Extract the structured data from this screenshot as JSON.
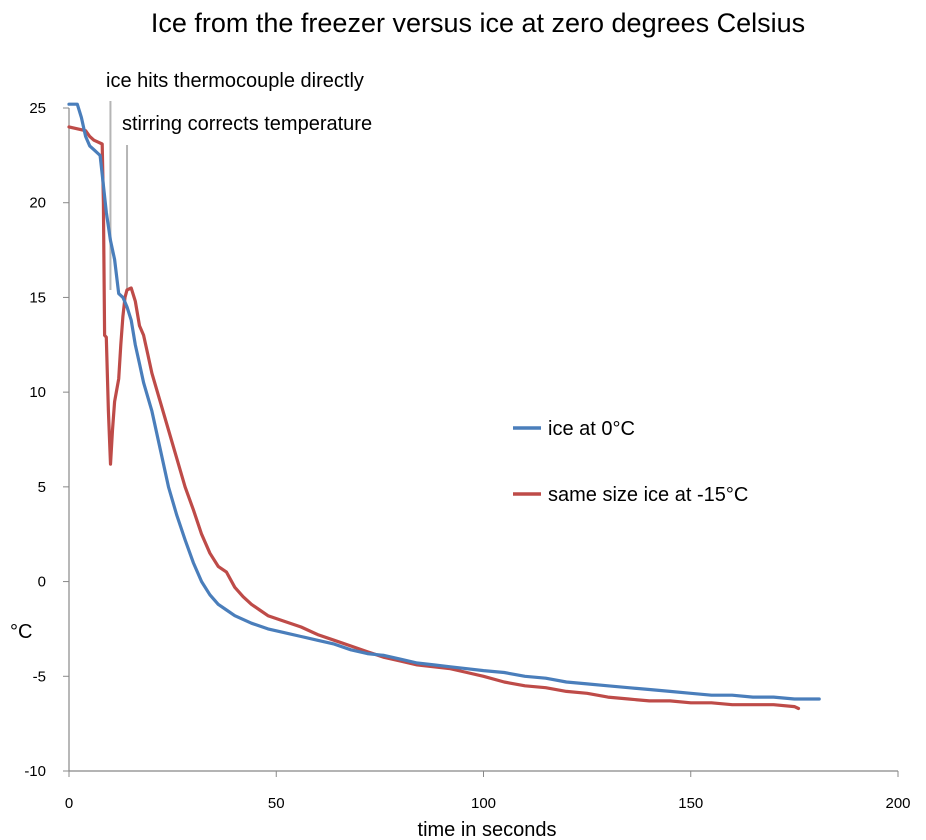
{
  "chart_data": {
    "type": "line",
    "title": "Ice from the freezer versus ice at zero degrees Celsius",
    "xlabel": "time in seconds",
    "ylabel": "°C",
    "xlim": [
      0,
      200
    ],
    "ylim": [
      -10,
      25
    ],
    "x_ticks": [
      "0",
      "50",
      "100",
      "150",
      "200"
    ],
    "y_ticks": [
      "-10",
      "-5",
      "0",
      "5",
      "10",
      "15",
      "20",
      "25"
    ],
    "grid": false,
    "legend_position": "right",
    "annotations": [
      {
        "text": "ice hits thermocouple directly",
        "x": 10
      },
      {
        "text": "stirring corrects temperature",
        "x": 14
      }
    ],
    "series": [
      {
        "name": "ice at 0°C",
        "color": "#4a7ebb",
        "points": [
          [
            0,
            25.2
          ],
          [
            2,
            25.2
          ],
          [
            3,
            24.5
          ],
          [
            4,
            23.5
          ],
          [
            5,
            23.0
          ],
          [
            6,
            22.8
          ],
          [
            7,
            22.6
          ],
          [
            7.5,
            22.5
          ],
          [
            8,
            21.5
          ],
          [
            9,
            19.5
          ],
          [
            10,
            18.0
          ],
          [
            11,
            17.0
          ],
          [
            12,
            15.2
          ],
          [
            13,
            15.0
          ],
          [
            14,
            14.5
          ],
          [
            15,
            13.8
          ],
          [
            16,
            12.5
          ],
          [
            17,
            11.5
          ],
          [
            18,
            10.5
          ],
          [
            20,
            9.0
          ],
          [
            22,
            7.0
          ],
          [
            24,
            5.0
          ],
          [
            26,
            3.5
          ],
          [
            28,
            2.2
          ],
          [
            30,
            1.0
          ],
          [
            32,
            0.0
          ],
          [
            34,
            -0.7
          ],
          [
            36,
            -1.2
          ],
          [
            38,
            -1.5
          ],
          [
            40,
            -1.8
          ],
          [
            44,
            -2.2
          ],
          [
            48,
            -2.5
          ],
          [
            52,
            -2.7
          ],
          [
            56,
            -2.9
          ],
          [
            60,
            -3.1
          ],
          [
            64,
            -3.3
          ],
          [
            68,
            -3.6
          ],
          [
            72,
            -3.8
          ],
          [
            76,
            -3.9
          ],
          [
            80,
            -4.1
          ],
          [
            84,
            -4.3
          ],
          [
            88,
            -4.4
          ],
          [
            92,
            -4.5
          ],
          [
            96,
            -4.6
          ],
          [
            100,
            -4.7
          ],
          [
            105,
            -4.8
          ],
          [
            110,
            -5.0
          ],
          [
            115,
            -5.1
          ],
          [
            120,
            -5.3
          ],
          [
            125,
            -5.4
          ],
          [
            130,
            -5.5
          ],
          [
            135,
            -5.6
          ],
          [
            140,
            -5.7
          ],
          [
            145,
            -5.8
          ],
          [
            150,
            -5.9
          ],
          [
            155,
            -6.0
          ],
          [
            160,
            -6.0
          ],
          [
            165,
            -6.1
          ],
          [
            170,
            -6.1
          ],
          [
            175,
            -6.2
          ],
          [
            180,
            -6.2
          ],
          [
            181,
            -6.2
          ]
        ]
      },
      {
        "name": "same size ice at -15°C",
        "color": "#be4b48",
        "points": [
          [
            0,
            24.0
          ],
          [
            2,
            23.9
          ],
          [
            4,
            23.8
          ],
          [
            5,
            23.5
          ],
          [
            6,
            23.3
          ],
          [
            7,
            23.2
          ],
          [
            8,
            23.1
          ],
          [
            8.3,
            20.0
          ],
          [
            8.6,
            13.0
          ],
          [
            9,
            12.9
          ],
          [
            9.5,
            9.0
          ],
          [
            10,
            6.2
          ],
          [
            10.5,
            8.0
          ],
          [
            11,
            9.5
          ],
          [
            12,
            10.7
          ],
          [
            12.5,
            12.5
          ],
          [
            13,
            14.0
          ],
          [
            13.5,
            15.0
          ],
          [
            14,
            15.4
          ],
          [
            15,
            15.5
          ],
          [
            16,
            14.8
          ],
          [
            17,
            13.5
          ],
          [
            18,
            13.0
          ],
          [
            19,
            12.0
          ],
          [
            20,
            11.0
          ],
          [
            22,
            9.5
          ],
          [
            24,
            8.0
          ],
          [
            26,
            6.5
          ],
          [
            28,
            5.0
          ],
          [
            30,
            3.8
          ],
          [
            32,
            2.5
          ],
          [
            34,
            1.5
          ],
          [
            36,
            0.8
          ],
          [
            38,
            0.5
          ],
          [
            40,
            -0.3
          ],
          [
            42,
            -0.8
          ],
          [
            44,
            -1.2
          ],
          [
            46,
            -1.5
          ],
          [
            48,
            -1.8
          ],
          [
            52,
            -2.1
          ],
          [
            56,
            -2.4
          ],
          [
            60,
            -2.8
          ],
          [
            64,
            -3.1
          ],
          [
            68,
            -3.4
          ],
          [
            72,
            -3.7
          ],
          [
            76,
            -4.0
          ],
          [
            80,
            -4.2
          ],
          [
            84,
            -4.4
          ],
          [
            88,
            -4.5
          ],
          [
            92,
            -4.6
          ],
          [
            96,
            -4.8
          ],
          [
            100,
            -5.0
          ],
          [
            105,
            -5.3
          ],
          [
            110,
            -5.5
          ],
          [
            115,
            -5.6
          ],
          [
            120,
            -5.8
          ],
          [
            125,
            -5.9
          ],
          [
            130,
            -6.1
          ],
          [
            135,
            -6.2
          ],
          [
            140,
            -6.3
          ],
          [
            145,
            -6.3
          ],
          [
            150,
            -6.4
          ],
          [
            155,
            -6.4
          ],
          [
            160,
            -6.5
          ],
          [
            165,
            -6.5
          ],
          [
            170,
            -6.5
          ],
          [
            175,
            -6.6
          ],
          [
            176,
            -6.7
          ]
        ]
      }
    ]
  }
}
